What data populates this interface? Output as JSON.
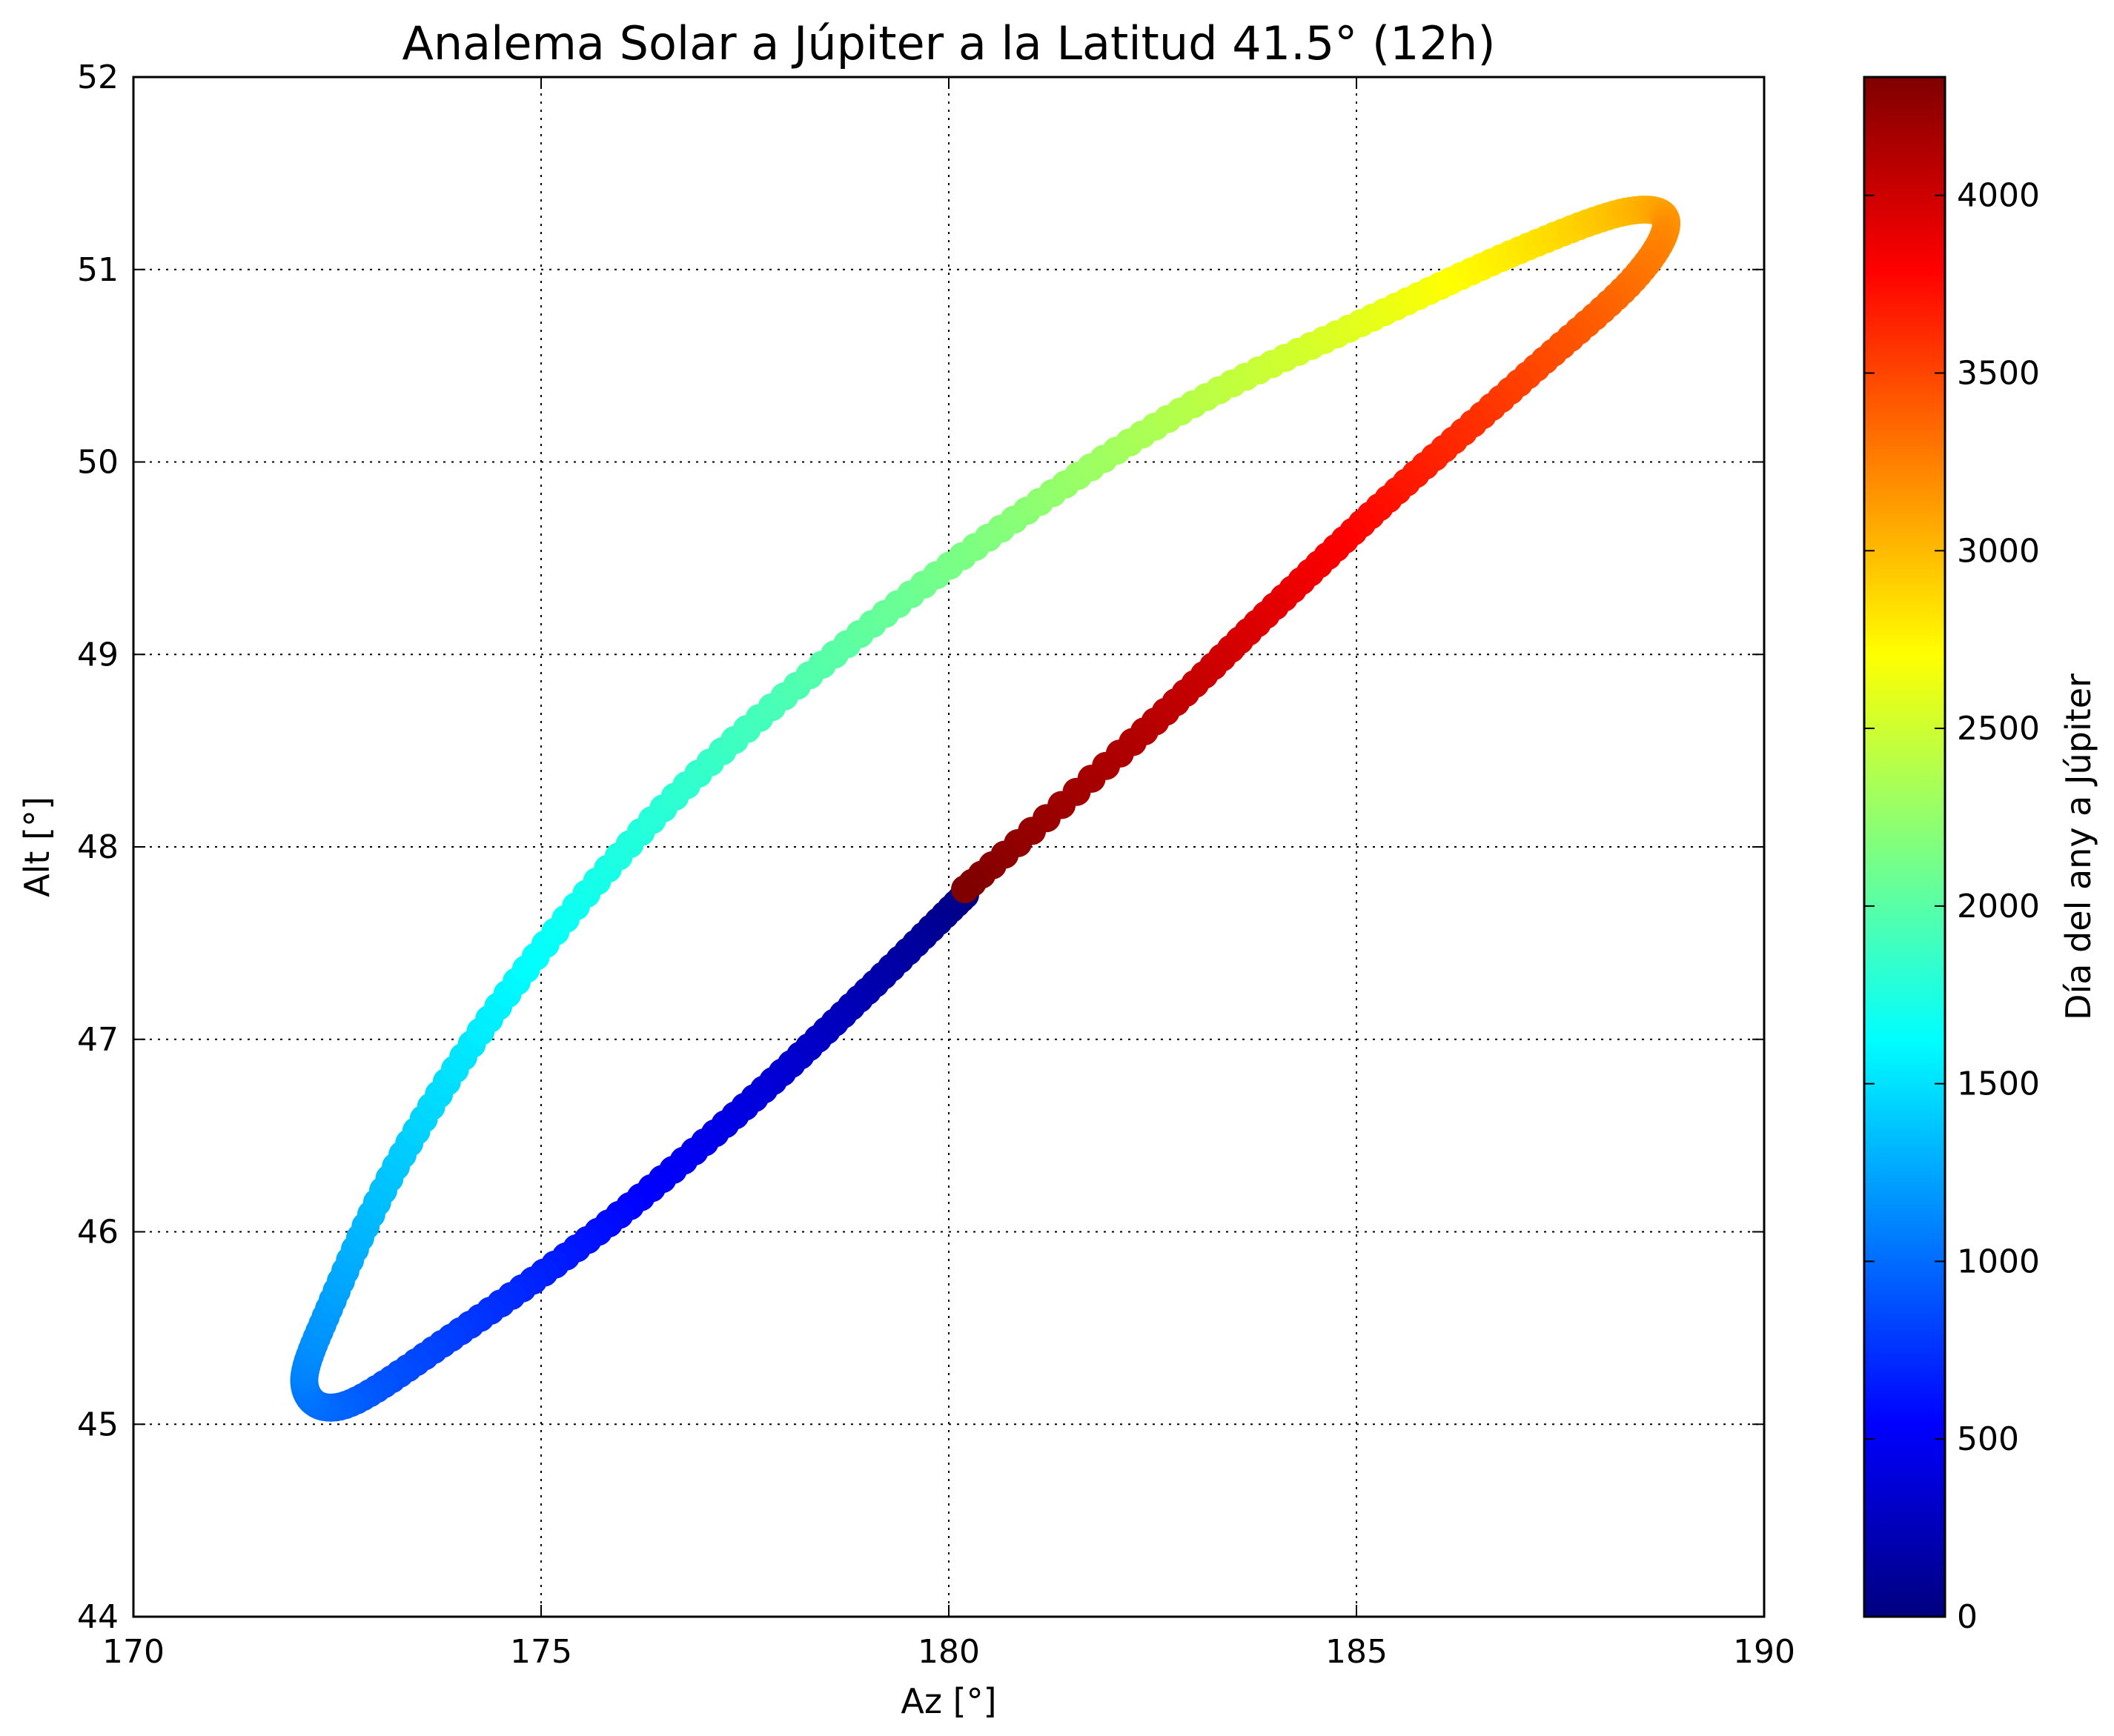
{
  "chart_data": {
    "type": "scatter",
    "title": "Analema Solar a Júpiter a la Latitud 41.5° (12h)",
    "xlabel": "Az [°]",
    "ylabel": "Alt [°]",
    "xlim": [
      170,
      190
    ],
    "ylim": [
      44,
      52
    ],
    "xticks": [
      170,
      175,
      180,
      185,
      190
    ],
    "yticks": [
      44,
      45,
      46,
      47,
      48,
      49,
      50,
      51,
      52
    ],
    "grid": true,
    "colormap": "jet",
    "colorbar": {
      "label": "Día del any a Júpiter",
      "range": [
        0,
        4333
      ],
      "ticks": [
        0,
        500,
        1000,
        1500,
        2000,
        2500,
        3000,
        3500,
        4000
      ]
    },
    "points": [
      {
        "day": 0,
        "az": 180.2,
        "alt": 47.75
      },
      {
        "day": 200,
        "az": 179.0,
        "alt": 47.25
      },
      {
        "day": 400,
        "az": 177.5,
        "alt": 46.65
      },
      {
        "day": 600,
        "az": 175.7,
        "alt": 46.0
      },
      {
        "day": 800,
        "az": 173.9,
        "alt": 45.45
      },
      {
        "day": 950,
        "az": 172.6,
        "alt": 45.1
      },
      {
        "day": 1050,
        "az": 172.1,
        "alt": 45.2
      },
      {
        "day": 1200,
        "az": 172.4,
        "alt": 45.6
      },
      {
        "day": 1400,
        "az": 173.3,
        "alt": 46.4
      },
      {
        "day": 1600,
        "az": 174.7,
        "alt": 47.3
      },
      {
        "day": 1800,
        "az": 176.5,
        "alt": 48.2
      },
      {
        "day": 2000,
        "az": 178.6,
        "alt": 49.0
      },
      {
        "day": 2200,
        "az": 180.8,
        "alt": 49.7
      },
      {
        "day": 2400,
        "az": 183.0,
        "alt": 50.3
      },
      {
        "day": 2600,
        "az": 185.2,
        "alt": 50.75
      },
      {
        "day": 2800,
        "az": 187.0,
        "alt": 51.1
      },
      {
        "day": 3000,
        "az": 188.3,
        "alt": 51.3
      },
      {
        "day": 3150,
        "az": 188.8,
        "alt": 51.25
      },
      {
        "day": 3300,
        "az": 188.4,
        "alt": 50.95
      },
      {
        "day": 3500,
        "az": 187.1,
        "alt": 50.45
      },
      {
        "day": 3700,
        "az": 185.5,
        "alt": 49.85
      },
      {
        "day": 3900,
        "az": 184.0,
        "alt": 49.25
      },
      {
        "day": 4100,
        "az": 182.4,
        "alt": 48.6
      },
      {
        "day": 4333,
        "az": 180.2,
        "alt": 47.78
      }
    ]
  }
}
